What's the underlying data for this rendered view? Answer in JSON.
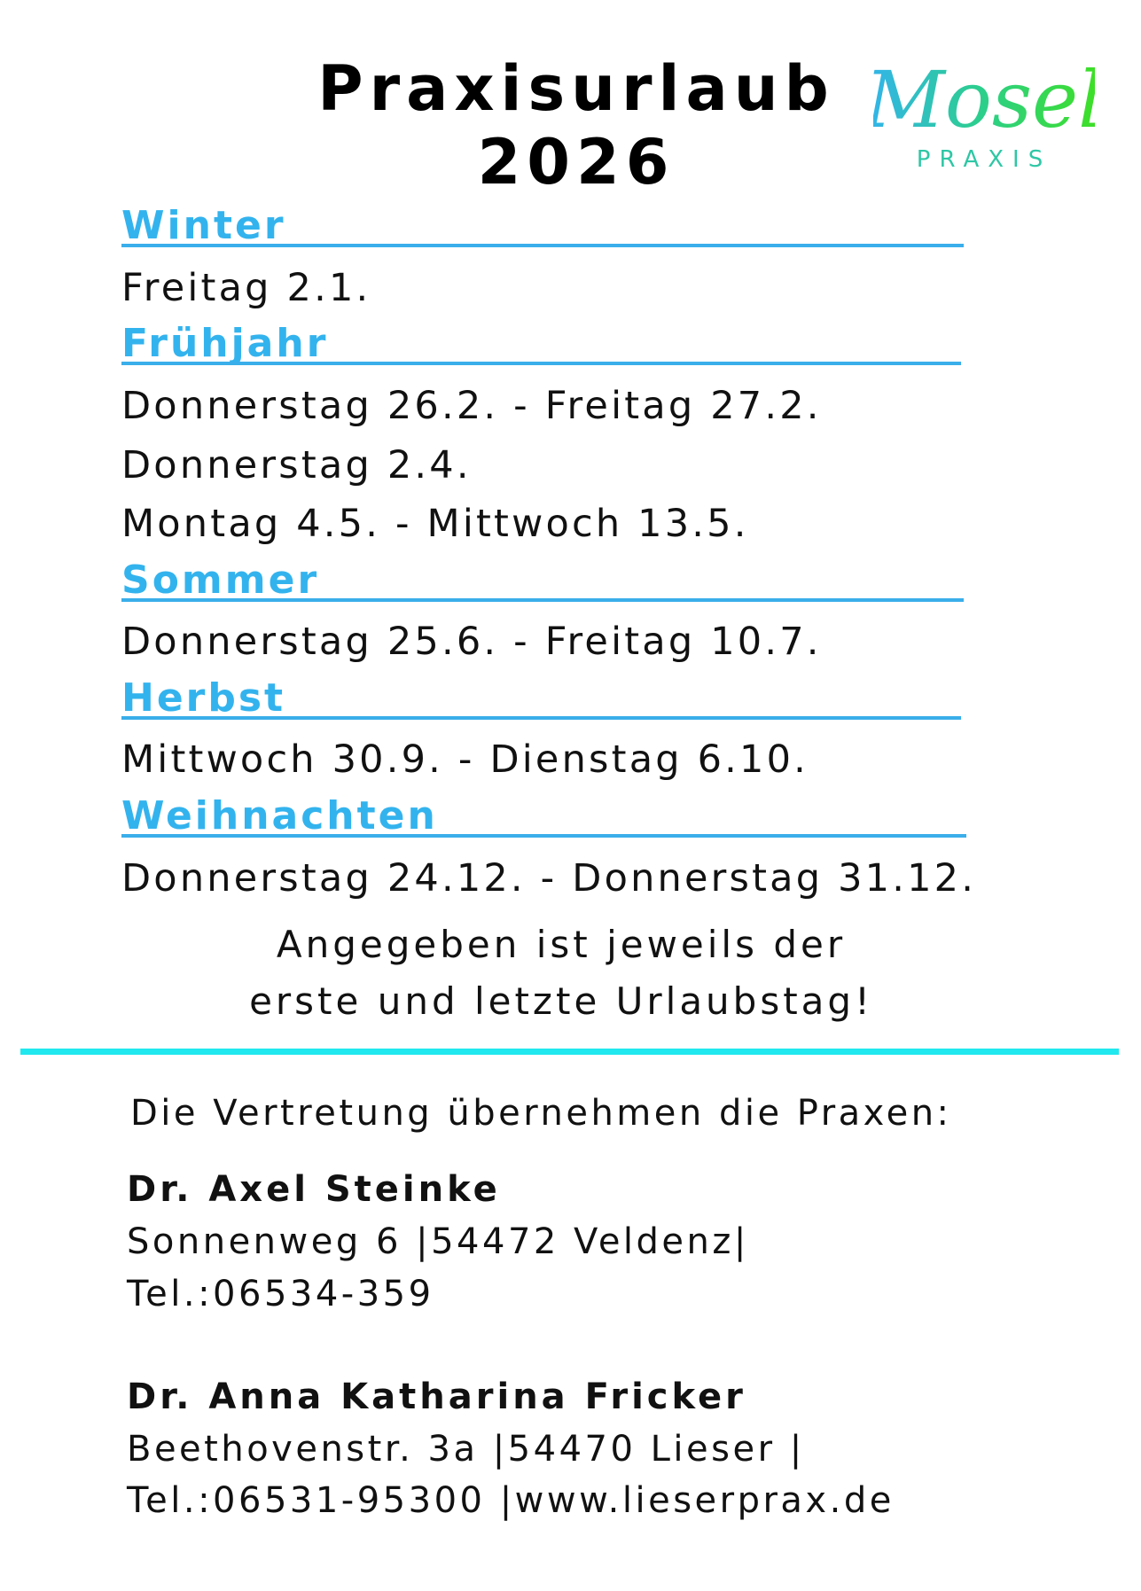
{
  "title": {
    "line1": "Praxisurlaub",
    "line2": "2026"
  },
  "logo": {
    "script_text": "Mosel",
    "sub_text": "PRAXIS",
    "gradient": [
      "#33b3ee",
      "#2ccf8a",
      "#3fe020"
    ],
    "sub_color": "#2ec7a5"
  },
  "colors": {
    "section": "#33b3ee",
    "divider": "#20e8ee"
  },
  "sections": [
    {
      "heading": "Winter",
      "rows": [
        "Freitag 2.1."
      ]
    },
    {
      "heading": "Frühjahr",
      "rows": [
        "Donnerstag 26.2. - Freitag 27.2.",
        "Donnerstag 2.4.",
        "Montag 4.5. - Mittwoch 13.5."
      ]
    },
    {
      "heading": "Sommer",
      "rows": [
        "Donnerstag 25.6. - Freitag 10.7."
      ]
    },
    {
      "heading": "Herbst",
      "rows": [
        "Mittwoch 30.9. - Dienstag 6.10."
      ]
    },
    {
      "heading": "Weihnachten",
      "rows": [
        "Donnerstag 24.12. - Donnerstag 31.12."
      ]
    }
  ],
  "note": {
    "line1": "Angegeben ist jeweils der",
    "line2": "erste und letzte Urlaubstag!"
  },
  "substitution": {
    "intro": "Die Vertretung übernehmen die Praxen:",
    "practices": [
      {
        "name": "Dr. Axel Steinke",
        "address": "Sonnenweg 6 |54472 Veldenz|",
        "contact": "Tel.:06534-359"
      },
      {
        "name": "Dr. Anna Katharina Fricker",
        "address": "Beethovenstr. 3a |54470 Lieser |",
        "contact": "Tel.:06531-95300 |www.lieserprax.de"
      }
    ]
  }
}
